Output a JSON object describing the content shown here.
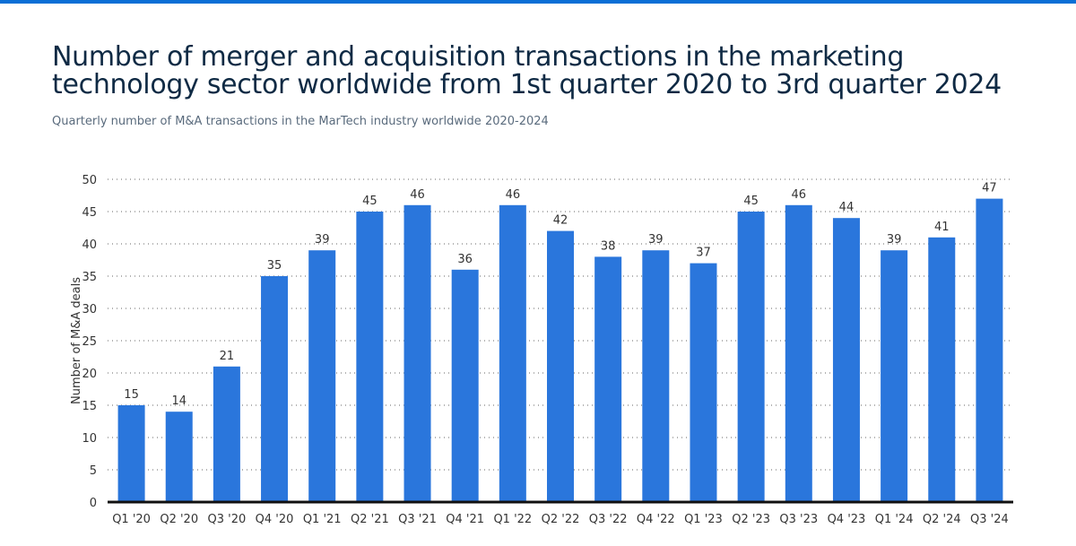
{
  "title": "Number of merger and acquisition transactions in the marketing technology sector worldwide from 1st quarter 2020 to 3rd quarter 2024",
  "subtitle": "Quarterly number of M&A transactions in the MarTech industry worldwide 2020-2024",
  "colors": {
    "bar": "#2a76dc",
    "accent": "#0a6fd6"
  },
  "chart_data": {
    "type": "bar",
    "categories": [
      "Q1 '20",
      "Q2 '20",
      "Q3 '20",
      "Q4 '20",
      "Q1 '21",
      "Q2 '21",
      "Q3 '21",
      "Q4 '21",
      "Q1 '22",
      "Q2 '22",
      "Q3 '22",
      "Q4 '22",
      "Q1 '23",
      "Q2 '23",
      "Q3 '23",
      "Q4 '23",
      "Q1 '24",
      "Q2 '24",
      "Q3 '24"
    ],
    "values": [
      15,
      14,
      21,
      35,
      39,
      45,
      46,
      36,
      46,
      42,
      38,
      39,
      37,
      45,
      46,
      44,
      39,
      41,
      47
    ],
    "xlabel": "",
    "ylabel": "Number of M&A deals",
    "ylim": [
      0,
      50
    ],
    "yticks": [
      0,
      5,
      10,
      15,
      20,
      25,
      30,
      35,
      40,
      45,
      50
    ],
    "grid": true,
    "data_labels": true
  }
}
